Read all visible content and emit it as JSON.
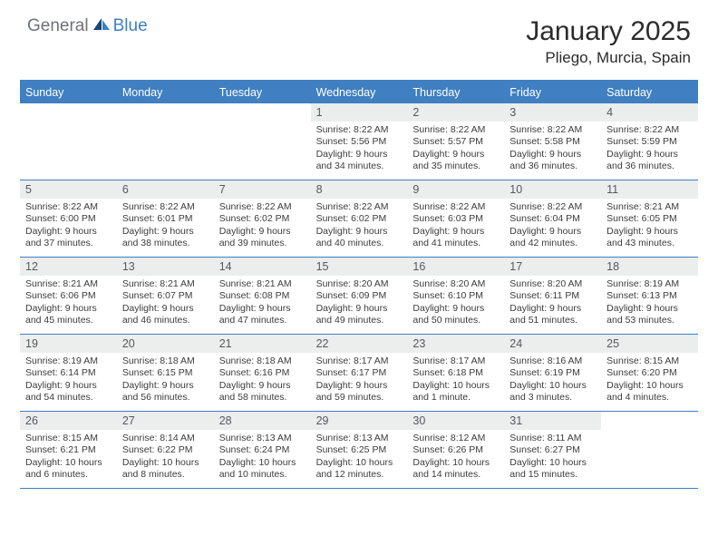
{
  "brand": {
    "part1": "General",
    "part2": "Blue"
  },
  "title": "January 2025",
  "location": "Pliego, Murcia, Spain",
  "colors": {
    "accent": "#3f7fc2",
    "header_text": "#ffffff",
    "daynum_bg": "#eceded",
    "daynum_text": "#555a5e",
    "body_text": "#3c3c3c",
    "logo_gray": "#6c7278",
    "background": "#ffffff"
  },
  "day_labels": [
    "Sunday",
    "Monday",
    "Tuesday",
    "Wednesday",
    "Thursday",
    "Friday",
    "Saturday"
  ],
  "weeks": [
    [
      {
        "day": "",
        "lines": []
      },
      {
        "day": "",
        "lines": []
      },
      {
        "day": "",
        "lines": []
      },
      {
        "day": "1",
        "lines": [
          "Sunrise: 8:22 AM",
          "Sunset: 5:56 PM",
          "Daylight: 9 hours",
          "and 34 minutes."
        ]
      },
      {
        "day": "2",
        "lines": [
          "Sunrise: 8:22 AM",
          "Sunset: 5:57 PM",
          "Daylight: 9 hours",
          "and 35 minutes."
        ]
      },
      {
        "day": "3",
        "lines": [
          "Sunrise: 8:22 AM",
          "Sunset: 5:58 PM",
          "Daylight: 9 hours",
          "and 36 minutes."
        ]
      },
      {
        "day": "4",
        "lines": [
          "Sunrise: 8:22 AM",
          "Sunset: 5:59 PM",
          "Daylight: 9 hours",
          "and 36 minutes."
        ]
      }
    ],
    [
      {
        "day": "5",
        "lines": [
          "Sunrise: 8:22 AM",
          "Sunset: 6:00 PM",
          "Daylight: 9 hours",
          "and 37 minutes."
        ]
      },
      {
        "day": "6",
        "lines": [
          "Sunrise: 8:22 AM",
          "Sunset: 6:01 PM",
          "Daylight: 9 hours",
          "and 38 minutes."
        ]
      },
      {
        "day": "7",
        "lines": [
          "Sunrise: 8:22 AM",
          "Sunset: 6:02 PM",
          "Daylight: 9 hours",
          "and 39 minutes."
        ]
      },
      {
        "day": "8",
        "lines": [
          "Sunrise: 8:22 AM",
          "Sunset: 6:02 PM",
          "Daylight: 9 hours",
          "and 40 minutes."
        ]
      },
      {
        "day": "9",
        "lines": [
          "Sunrise: 8:22 AM",
          "Sunset: 6:03 PM",
          "Daylight: 9 hours",
          "and 41 minutes."
        ]
      },
      {
        "day": "10",
        "lines": [
          "Sunrise: 8:22 AM",
          "Sunset: 6:04 PM",
          "Daylight: 9 hours",
          "and 42 minutes."
        ]
      },
      {
        "day": "11",
        "lines": [
          "Sunrise: 8:21 AM",
          "Sunset: 6:05 PM",
          "Daylight: 9 hours",
          "and 43 minutes."
        ]
      }
    ],
    [
      {
        "day": "12",
        "lines": [
          "Sunrise: 8:21 AM",
          "Sunset: 6:06 PM",
          "Daylight: 9 hours",
          "and 45 minutes."
        ]
      },
      {
        "day": "13",
        "lines": [
          "Sunrise: 8:21 AM",
          "Sunset: 6:07 PM",
          "Daylight: 9 hours",
          "and 46 minutes."
        ]
      },
      {
        "day": "14",
        "lines": [
          "Sunrise: 8:21 AM",
          "Sunset: 6:08 PM",
          "Daylight: 9 hours",
          "and 47 minutes."
        ]
      },
      {
        "day": "15",
        "lines": [
          "Sunrise: 8:20 AM",
          "Sunset: 6:09 PM",
          "Daylight: 9 hours",
          "and 49 minutes."
        ]
      },
      {
        "day": "16",
        "lines": [
          "Sunrise: 8:20 AM",
          "Sunset: 6:10 PM",
          "Daylight: 9 hours",
          "and 50 minutes."
        ]
      },
      {
        "day": "17",
        "lines": [
          "Sunrise: 8:20 AM",
          "Sunset: 6:11 PM",
          "Daylight: 9 hours",
          "and 51 minutes."
        ]
      },
      {
        "day": "18",
        "lines": [
          "Sunrise: 8:19 AM",
          "Sunset: 6:13 PM",
          "Daylight: 9 hours",
          "and 53 minutes."
        ]
      }
    ],
    [
      {
        "day": "19",
        "lines": [
          "Sunrise: 8:19 AM",
          "Sunset: 6:14 PM",
          "Daylight: 9 hours",
          "and 54 minutes."
        ]
      },
      {
        "day": "20",
        "lines": [
          "Sunrise: 8:18 AM",
          "Sunset: 6:15 PM",
          "Daylight: 9 hours",
          "and 56 minutes."
        ]
      },
      {
        "day": "21",
        "lines": [
          "Sunrise: 8:18 AM",
          "Sunset: 6:16 PM",
          "Daylight: 9 hours",
          "and 58 minutes."
        ]
      },
      {
        "day": "22",
        "lines": [
          "Sunrise: 8:17 AM",
          "Sunset: 6:17 PM",
          "Daylight: 9 hours",
          "and 59 minutes."
        ]
      },
      {
        "day": "23",
        "lines": [
          "Sunrise: 8:17 AM",
          "Sunset: 6:18 PM",
          "Daylight: 10 hours",
          "and 1 minute."
        ]
      },
      {
        "day": "24",
        "lines": [
          "Sunrise: 8:16 AM",
          "Sunset: 6:19 PM",
          "Daylight: 10 hours",
          "and 3 minutes."
        ]
      },
      {
        "day": "25",
        "lines": [
          "Sunrise: 8:15 AM",
          "Sunset: 6:20 PM",
          "Daylight: 10 hours",
          "and 4 minutes."
        ]
      }
    ],
    [
      {
        "day": "26",
        "lines": [
          "Sunrise: 8:15 AM",
          "Sunset: 6:21 PM",
          "Daylight: 10 hours",
          "and 6 minutes."
        ]
      },
      {
        "day": "27",
        "lines": [
          "Sunrise: 8:14 AM",
          "Sunset: 6:22 PM",
          "Daylight: 10 hours",
          "and 8 minutes."
        ]
      },
      {
        "day": "28",
        "lines": [
          "Sunrise: 8:13 AM",
          "Sunset: 6:24 PM",
          "Daylight: 10 hours",
          "and 10 minutes."
        ]
      },
      {
        "day": "29",
        "lines": [
          "Sunrise: 8:13 AM",
          "Sunset: 6:25 PM",
          "Daylight: 10 hours",
          "and 12 minutes."
        ]
      },
      {
        "day": "30",
        "lines": [
          "Sunrise: 8:12 AM",
          "Sunset: 6:26 PM",
          "Daylight: 10 hours",
          "and 14 minutes."
        ]
      },
      {
        "day": "31",
        "lines": [
          "Sunrise: 8:11 AM",
          "Sunset: 6:27 PM",
          "Daylight: 10 hours",
          "and 15 minutes."
        ]
      },
      {
        "day": "",
        "lines": []
      }
    ]
  ]
}
